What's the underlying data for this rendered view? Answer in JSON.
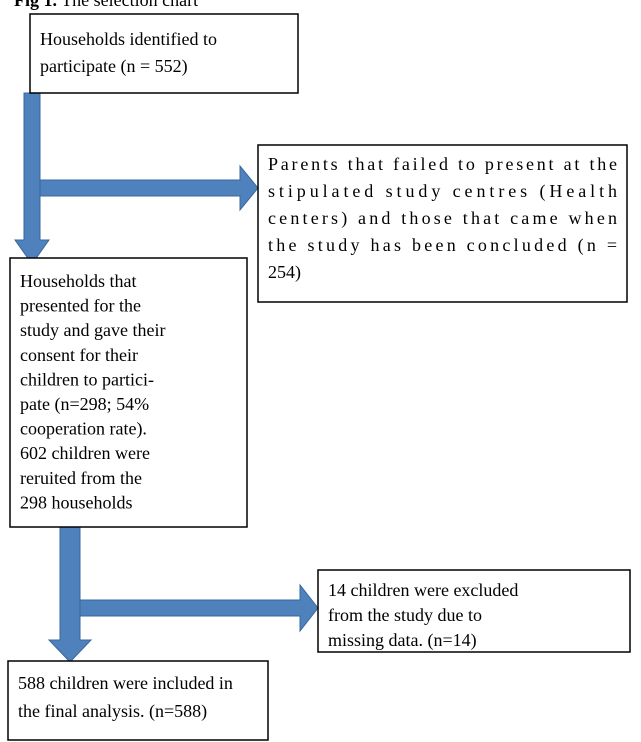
{
  "title": {
    "label": "Fig 1.",
    "text": "The selection chart"
  },
  "boxes": [
    {
      "lines": [
        "Households identified to",
        "participate (n = 552)"
      ]
    },
    {
      "lines": [
        "Parents that failed to present at the",
        "stipulated study centres (Health",
        "centers)  and those that came when",
        "the study has been concluded (n =",
        "254)"
      ]
    },
    {
      "lines": [
        "Households that",
        "presented for the",
        "study and gave their",
        "consent for their",
        "children to partici-",
        "pate (n=298; 54%",
        "cooperation rate).",
        "602 children were",
        "reruited from the",
        "298 households"
      ]
    },
    {
      "lines": [
        "14 children were excluded",
        "from the study due to",
        "missing data. (n=14)"
      ]
    },
    {
      "lines": [
        "588 children were included in",
        "the final analysis. (n=588)"
      ]
    }
  ]
}
